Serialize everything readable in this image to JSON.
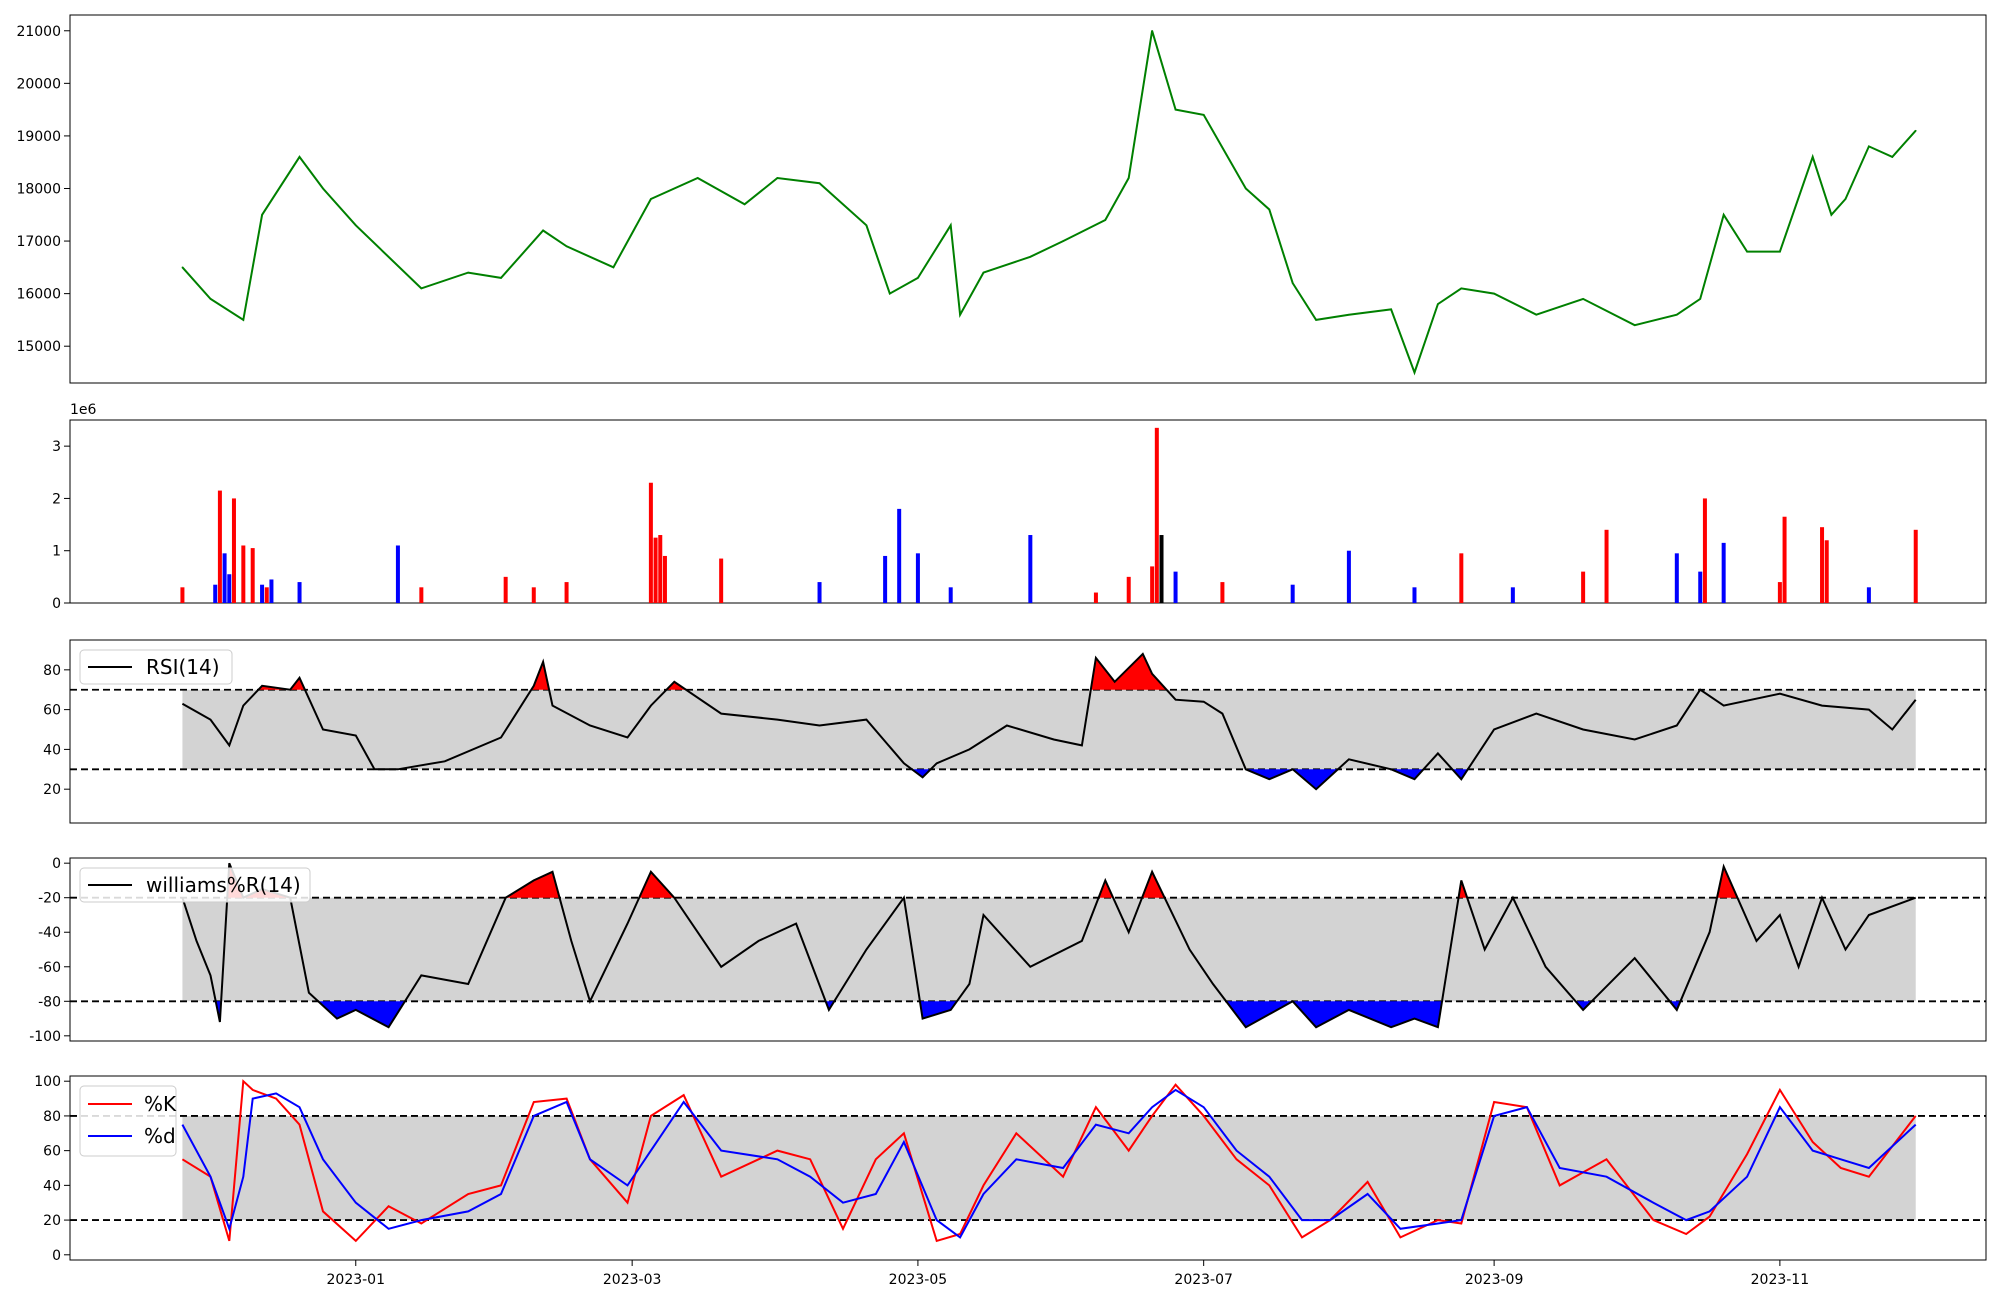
{
  "chart_data": [
    {
      "type": "line",
      "panel": "price",
      "color": "#008000",
      "ylim": [
        14300,
        21300
      ],
      "yticks": [
        "15000",
        "16000",
        "17000",
        "18000",
        "19000",
        "20000",
        "21000"
      ],
      "x": [
        "2022-11-25",
        "2022-12-01",
        "2022-12-08",
        "2022-12-12",
        "2022-12-20",
        "2022-12-25",
        "2023-01-01",
        "2023-01-15",
        "2023-01-25",
        "2023-02-01",
        "2023-02-10",
        "2023-02-15",
        "2023-02-25",
        "2023-03-05",
        "2023-03-15",
        "2023-03-25",
        "2023-04-01",
        "2023-04-10",
        "2023-04-20",
        "2023-04-25",
        "2023-05-01",
        "2023-05-08",
        "2023-05-10",
        "2023-05-15",
        "2023-05-25",
        "2023-06-01",
        "2023-06-10",
        "2023-06-15",
        "2023-06-20",
        "2023-06-25",
        "2023-07-01",
        "2023-07-10",
        "2023-07-15",
        "2023-07-20",
        "2023-07-25",
        "2023-08-01",
        "2023-08-10",
        "2023-08-15",
        "2023-08-20",
        "2023-08-25",
        "2023-09-01",
        "2023-09-10",
        "2023-09-20",
        "2023-10-01",
        "2023-10-10",
        "2023-10-15",
        "2023-10-20",
        "2023-10-25",
        "2023-11-01",
        "2023-11-08",
        "2023-11-12",
        "2023-11-15",
        "2023-11-20",
        "2023-11-25",
        "2023-11-30"
      ],
      "values": [
        16500,
        15900,
        15500,
        17500,
        18600,
        18000,
        17300,
        16100,
        16400,
        16300,
        17200,
        16900,
        16500,
        17800,
        18200,
        17700,
        18200,
        18100,
        17300,
        16000,
        16300,
        17300,
        15600,
        16400,
        16700,
        17000,
        17400,
        18200,
        21000,
        19500,
        19400,
        18000,
        17600,
        16200,
        15500,
        15600,
        15700,
        14500,
        15800,
        16100,
        16000,
        15600,
        15900,
        15400,
        15600,
        15900,
        17500,
        16800,
        16800,
        18600,
        17500,
        17800,
        18800,
        18600,
        19100
      ]
    },
    {
      "type": "bar",
      "panel": "volume",
      "ylim": [
        0,
        3500000
      ],
      "yticks": [
        "0",
        "1",
        "2",
        "3"
      ],
      "exponent_label": "1e6",
      "up_color": "#ff0000",
      "down_color": "#0000ff",
      "neutral_color": "#000000",
      "x": [
        "2022-11-25",
        "2022-12-02",
        "2022-12-03",
        "2022-12-04",
        "2022-12-05",
        "2022-12-06",
        "2022-12-08",
        "2022-12-10",
        "2022-12-12",
        "2022-12-13",
        "2022-12-14",
        "2022-12-20",
        "2023-01-10",
        "2023-01-15",
        "2023-02-02",
        "2023-02-08",
        "2023-02-15",
        "2023-03-05",
        "2023-03-06",
        "2023-03-07",
        "2023-03-08",
        "2023-03-20",
        "2023-04-10",
        "2023-04-24",
        "2023-04-27",
        "2023-05-01",
        "2023-05-08",
        "2023-05-25",
        "2023-06-08",
        "2023-06-15",
        "2023-06-20",
        "2023-06-21",
        "2023-06-22",
        "2023-06-25",
        "2023-07-05",
        "2023-07-20",
        "2023-08-01",
        "2023-08-15",
        "2023-08-25",
        "2023-09-05",
        "2023-09-20",
        "2023-09-25",
        "2023-10-10",
        "2023-10-15",
        "2023-10-16",
        "2023-10-20",
        "2023-11-01",
        "2023-11-02",
        "2023-11-10",
        "2023-11-11",
        "2023-11-20",
        "2023-11-30"
      ],
      "values": [
        300000,
        350000,
        2150000,
        950000,
        550000,
        2000000,
        1100000,
        1050000,
        350000,
        300000,
        450000,
        400000,
        1100000,
        300000,
        500000,
        300000,
        400000,
        2300000,
        1250000,
        1300000,
        900000,
        850000,
        400000,
        900000,
        1800000,
        950000,
        300000,
        1300000,
        200000,
        500000,
        700000,
        3350000,
        1300000,
        600000,
        400000,
        350000,
        1000000,
        300000,
        950000,
        300000,
        600000,
        1400000,
        950000,
        600000,
        2000000,
        1150000,
        400000,
        1650000,
        1450000,
        1200000,
        300000,
        1400000
      ],
      "directions": [
        "up",
        "down",
        "up",
        "down",
        "down",
        "up",
        "up",
        "up",
        "down",
        "up",
        "down",
        "down",
        "down",
        "up",
        "up",
        "up",
        "up",
        "up",
        "up",
        "up",
        "up",
        "up",
        "down",
        "down",
        "down",
        "down",
        "down",
        "down",
        "up",
        "up",
        "up",
        "up",
        "neutral",
        "down",
        "up",
        "down",
        "down",
        "down",
        "up",
        "down",
        "up",
        "up",
        "down",
        "down",
        "up",
        "down",
        "up",
        "up",
        "up",
        "up",
        "down",
        "up"
      ]
    },
    {
      "type": "line",
      "panel": "rsi",
      "legend": "RSI(14)",
      "ylim": [
        3,
        95
      ],
      "yticks": [
        "20",
        "40",
        "60",
        "80"
      ],
      "upper_threshold": 70,
      "lower_threshold": 30,
      "x": [
        "2022-11-25",
        "2022-12-01",
        "2022-12-05",
        "2022-12-08",
        "2022-12-12",
        "2022-12-18",
        "2022-12-20",
        "2022-12-25",
        "2023-01-01",
        "2023-01-05",
        "2023-01-10",
        "2023-01-20",
        "2023-02-01",
        "2023-02-08",
        "2023-02-10",
        "2023-02-12",
        "2023-02-20",
        "2023-02-28",
        "2023-03-05",
        "2023-03-10",
        "2023-03-20",
        "2023-04-01",
        "2023-04-10",
        "2023-04-20",
        "2023-04-28",
        "2023-05-02",
        "2023-05-05",
        "2023-05-12",
        "2023-05-20",
        "2023-05-30",
        "2023-06-05",
        "2023-06-08",
        "2023-06-12",
        "2023-06-18",
        "2023-06-20",
        "2023-06-25",
        "2023-07-01",
        "2023-07-05",
        "2023-07-10",
        "2023-07-15",
        "2023-07-20",
        "2023-07-25",
        "2023-08-01",
        "2023-08-10",
        "2023-08-15",
        "2023-08-20",
        "2023-08-25",
        "2023-09-01",
        "2023-09-10",
        "2023-09-20",
        "2023-10-01",
        "2023-10-10",
        "2023-10-15",
        "2023-10-20",
        "2023-11-01",
        "2023-11-10",
        "2023-11-20",
        "2023-11-25",
        "2023-11-30"
      ],
      "values": [
        63,
        55,
        42,
        62,
        72,
        70,
        76,
        50,
        47,
        30,
        30,
        34,
        46,
        72,
        84,
        62,
        52,
        46,
        62,
        74,
        58,
        55,
        52,
        55,
        33,
        26,
        33,
        40,
        52,
        45,
        42,
        86,
        74,
        88,
        78,
        65,
        64,
        58,
        30,
        25,
        30,
        20,
        35,
        30,
        25,
        38,
        25,
        50,
        58,
        50,
        45,
        52,
        70,
        62,
        68,
        62,
        60,
        50,
        65
      ]
    },
    {
      "type": "line",
      "panel": "williams",
      "legend": "williams%R(14)",
      "ylim": [
        -103,
        3
      ],
      "yticks": [
        "0",
        "-20",
        "-40",
        "-60",
        "-80",
        "-100"
      ],
      "upper_threshold": -20,
      "lower_threshold": -80,
      "x": [
        "2022-11-25",
        "2022-11-28",
        "2022-12-01",
        "2022-12-03",
        "2022-12-05",
        "2022-12-08",
        "2022-12-12",
        "2022-12-18",
        "2022-12-22",
        "2022-12-28",
        "2023-01-01",
        "2023-01-08",
        "2023-01-15",
        "2023-01-25",
        "2023-02-02",
        "2023-02-08",
        "2023-02-12",
        "2023-02-16",
        "2023-02-20",
        "2023-02-28",
        "2023-03-05",
        "2023-03-10",
        "2023-03-20",
        "2023-03-28",
        "2023-04-05",
        "2023-04-12",
        "2023-04-20",
        "2023-04-28",
        "2023-05-02",
        "2023-05-08",
        "2023-05-12",
        "2023-05-15",
        "2023-05-25",
        "2023-06-05",
        "2023-06-10",
        "2023-06-15",
        "2023-06-20",
        "2023-06-28",
        "2023-07-03",
        "2023-07-10",
        "2023-07-20",
        "2023-07-25",
        "2023-08-01",
        "2023-08-10",
        "2023-08-15",
        "2023-08-20",
        "2023-08-25",
        "2023-08-30",
        "2023-09-05",
        "2023-09-12",
        "2023-09-20",
        "2023-10-01",
        "2023-10-10",
        "2023-10-17",
        "2023-10-20",
        "2023-10-27",
        "2023-11-01",
        "2023-11-05",
        "2023-11-10",
        "2023-11-15",
        "2023-11-20",
        "2023-11-30"
      ],
      "values": [
        -20,
        -45,
        -65,
        -92,
        0,
        -20,
        -15,
        -20,
        -75,
        -90,
        -85,
        -95,
        -65,
        -70,
        -20,
        -10,
        -5,
        -45,
        -80,
        -35,
        -5,
        -20,
        -60,
        -45,
        -35,
        -85,
        -50,
        -20,
        -90,
        -85,
        -70,
        -30,
        -60,
        -45,
        -10,
        -40,
        -5,
        -50,
        -70,
        -95,
        -80,
        -95,
        -85,
        -95,
        -90,
        -95,
        -10,
        -50,
        -20,
        -60,
        -85,
        -55,
        -85,
        -40,
        -2,
        -45,
        -30,
        -60,
        -20,
        -50,
        -30,
        -20
      ]
    },
    {
      "type": "line",
      "panel": "stochastic",
      "ylim": [
        -3,
        103
      ],
      "yticks": [
        "0",
        "20",
        "40",
        "60",
        "80",
        "100"
      ],
      "upper_threshold": 80,
      "lower_threshold": 20,
      "x": [
        "2022-11-25",
        "2022-12-01",
        "2022-12-05",
        "2022-12-08",
        "2022-12-10",
        "2022-12-15",
        "2022-12-20",
        "2022-12-25",
        "2023-01-01",
        "2023-01-08",
        "2023-01-15",
        "2023-01-25",
        "2023-02-01",
        "2023-02-08",
        "2023-02-15",
        "2023-02-20",
        "2023-02-28",
        "2023-03-05",
        "2023-03-12",
        "2023-03-20",
        "2023-04-01",
        "2023-04-08",
        "2023-04-15",
        "2023-04-22",
        "2023-04-28",
        "2023-05-05",
        "2023-05-10",
        "2023-05-15",
        "2023-05-22",
        "2023-06-01",
        "2023-06-08",
        "2023-06-15",
        "2023-06-20",
        "2023-06-25",
        "2023-07-01",
        "2023-07-08",
        "2023-07-15",
        "2023-07-22",
        "2023-07-28",
        "2023-08-05",
        "2023-08-12",
        "2023-08-20",
        "2023-08-25",
        "2023-09-01",
        "2023-09-08",
        "2023-09-15",
        "2023-09-25",
        "2023-10-05",
        "2023-10-12",
        "2023-10-17",
        "2023-10-25",
        "2023-11-01",
        "2023-11-08",
        "2023-11-14",
        "2023-11-20",
        "2023-11-30"
      ],
      "series": [
        {
          "name": "%K",
          "color": "#ff0000",
          "values": [
            55,
            45,
            8,
            100,
            95,
            90,
            75,
            25,
            8,
            28,
            18,
            35,
            40,
            88,
            90,
            55,
            30,
            80,
            92,
            45,
            60,
            55,
            15,
            55,
            70,
            8,
            12,
            40,
            70,
            45,
            85,
            60,
            80,
            98,
            80,
            55,
            40,
            10,
            20,
            42,
            10,
            20,
            18,
            88,
            85,
            40,
            55,
            20,
            12,
            22,
            58,
            95,
            65,
            50,
            45,
            80
          ]
        },
        {
          "name": "%d",
          "color": "#0000ff",
          "values": [
            75,
            45,
            15,
            45,
            90,
            93,
            85,
            55,
            30,
            15,
            20,
            25,
            35,
            80,
            88,
            55,
            40,
            60,
            88,
            60,
            55,
            45,
            30,
            35,
            65,
            20,
            10,
            35,
            55,
            50,
            75,
            70,
            85,
            95,
            85,
            60,
            45,
            20,
            20,
            35,
            15,
            18,
            20,
            80,
            85,
            50,
            45,
            30,
            20,
            25,
            45,
            85,
            60,
            55,
            50,
            75
          ]
        }
      ]
    }
  ],
  "x_ticks": [
    "2023-01",
    "2023-03",
    "2023-05",
    "2023-07",
    "2023-09",
    "2023-11"
  ],
  "x_domain": [
    "2022-11-01",
    "2023-12-15"
  ]
}
